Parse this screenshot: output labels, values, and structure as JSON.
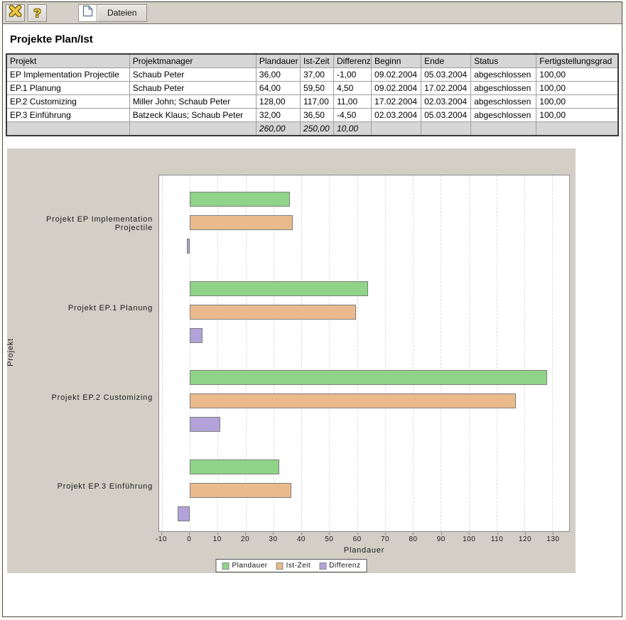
{
  "toolbar": {
    "close_icon": "x-close",
    "help_label": "?",
    "dateien_label": "Dateien"
  },
  "page": {
    "title": "Projekte Plan/Ist"
  },
  "table": {
    "columns": [
      "Projekt",
      "Projektmanager",
      "Plandauer",
      "Ist-Zeit",
      "Differenz",
      "Beginn",
      "Ende",
      "Status",
      "Fertigstellungsgrad"
    ],
    "rows": [
      [
        "EP Implementation Projectile",
        "Schaub Peter",
        "36,00",
        "37,00",
        "-1,00",
        "09.02.2004",
        "05.03.2004",
        "abgeschlossen",
        "100,00"
      ],
      [
        "EP.1 Planung",
        "Schaub Peter",
        "64,00",
        "59,50",
        "4,50",
        "09.02.2004",
        "17.02.2004",
        "abgeschlossen",
        "100,00"
      ],
      [
        "EP.2 Customizing",
        "Miller John; Schaub Peter",
        "128,00",
        "117,00",
        "11,00",
        "17.02.2004",
        "02.03.2004",
        "abgeschlossen",
        "100,00"
      ],
      [
        "EP.3 Einführung",
        "Batzeck Klaus; Schaub Peter",
        "32,00",
        "36,50",
        "-4,50",
        "02.03.2004",
        "05.03.2004",
        "abgeschlossen",
        "100,00"
      ]
    ],
    "totals": [
      "",
      "",
      "260,00",
      "250,00",
      "10,00",
      "",
      "",
      "",
      ""
    ]
  },
  "chart_data": {
    "type": "bar",
    "orientation": "horizontal",
    "title": "",
    "categories": [
      "Projekt EP Implementation Projectile",
      "Projekt EP.1 Planung",
      "Projekt EP.2 Customizing",
      "Projekt EP.3 Einführung"
    ],
    "series": [
      {
        "name": "Plandauer",
        "color": "#8fd488",
        "values": [
          36,
          64,
          128,
          32
        ]
      },
      {
        "name": "Ist-Zeit",
        "color": "#eaba8d",
        "values": [
          37,
          59.5,
          117,
          36.5
        ]
      },
      {
        "name": "Differenz",
        "color": "#b3a2da",
        "values": [
          -1,
          4.5,
          11,
          -4.5
        ]
      }
    ],
    "xlabel": "Plandauer",
    "ylabel": "Projekt",
    "xticks": [
      -10,
      0,
      10,
      20,
      30,
      40,
      50,
      60,
      70,
      80,
      90,
      100,
      110,
      120,
      130
    ],
    "xlim": [
      -11,
      136
    ],
    "grid": true,
    "legend_position": "bottom-center"
  },
  "colors": {
    "plandauer": "#8fd488",
    "ist_zeit": "#eaba8d",
    "differenz": "#b3a2da",
    "negative_text": "#dd0000",
    "link_text": "#3333cc",
    "panel_bg": "#d3cfc7",
    "toolbar_bg": "#d4d0c8"
  }
}
